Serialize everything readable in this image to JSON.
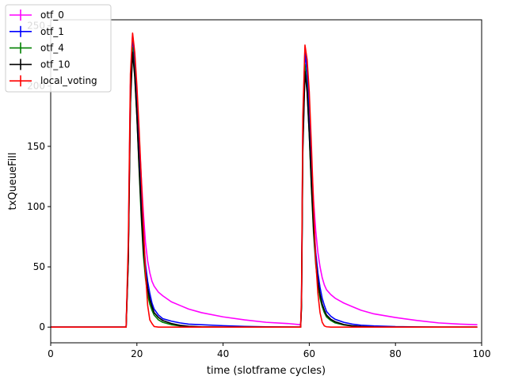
{
  "chart_data": {
    "type": "line",
    "xlabel": "time (slotframe cycles)",
    "ylabel": "txQueueFill",
    "xlim": [
      0,
      100
    ],
    "ylim": [
      -13,
      255
    ],
    "xticks": [
      0,
      20,
      40,
      60,
      80,
      100
    ],
    "yticks": [
      0,
      50,
      100,
      150,
      200,
      250
    ],
    "grid": false,
    "legend_position": "top-left",
    "series": [
      {
        "name": "otf_0",
        "color": "#ff00ff",
        "x": [
          0,
          5,
          10,
          15,
          17.5,
          18,
          18.5,
          19,
          19.5,
          20,
          20.5,
          21,
          21.5,
          22,
          22.5,
          23,
          23.5,
          24,
          25,
          26,
          28,
          30,
          32,
          35,
          40,
          45,
          50,
          55,
          58,
          58.2,
          58.5,
          59,
          59.5,
          60,
          60.5,
          61,
          61.5,
          62,
          62.5,
          63,
          63.5,
          64,
          65,
          66,
          68,
          70,
          72,
          75,
          80,
          85,
          90,
          95,
          99
        ],
        "y": [
          0,
          0,
          0,
          0,
          0,
          60,
          200,
          243,
          225,
          195,
          160,
          125,
          95,
          70,
          55,
          45,
          38,
          34,
          29,
          26,
          21,
          18,
          15,
          12,
          8.5,
          6,
          4,
          3,
          2,
          20,
          165,
          232,
          215,
          180,
          140,
          105,
          80,
          62,
          50,
          41,
          35,
          31,
          27,
          24,
          20,
          17,
          14,
          11,
          8,
          5.5,
          3.5,
          2.5,
          2
        ]
      },
      {
        "name": "otf_1",
        "color": "#0000ff",
        "x": [
          0,
          5,
          10,
          15,
          17.5,
          18,
          18.5,
          19,
          19.5,
          20,
          20.5,
          21,
          21.5,
          22,
          22.5,
          23,
          23.5,
          24,
          25,
          26,
          28,
          30,
          32,
          35,
          40,
          45,
          50,
          55,
          58,
          58.2,
          58.5,
          59,
          59.5,
          60,
          60.5,
          61,
          61.5,
          62,
          62.5,
          63,
          63.5,
          64,
          65,
          66,
          68,
          70,
          72,
          75,
          80,
          85,
          90,
          95,
          99
        ],
        "y": [
          0,
          0,
          0,
          0,
          0,
          60,
          200,
          242,
          220,
          185,
          145,
          105,
          75,
          52,
          38,
          28,
          20,
          15,
          10,
          7,
          5,
          3.5,
          2.5,
          2,
          1.2,
          0.6,
          0.3,
          0.1,
          0,
          20,
          160,
          230,
          210,
          170,
          125,
          90,
          62,
          45,
          33,
          24,
          18,
          13,
          9,
          6.5,
          4,
          2.5,
          1.6,
          1,
          0.4,
          0.2,
          0,
          0,
          0
        ]
      },
      {
        "name": "otf_4",
        "color": "#008000",
        "x": [
          0,
          5,
          10,
          15,
          17.5,
          18,
          18.5,
          19,
          19.5,
          20,
          20.5,
          21,
          21.5,
          22,
          22.5,
          23,
          23.5,
          24,
          25,
          26,
          28,
          30,
          32,
          35,
          40,
          45,
          50,
          55,
          58,
          58.2,
          58.5,
          59,
          59.5,
          60,
          60.5,
          61,
          61.5,
          62,
          62.5,
          63,
          63.5,
          64,
          65,
          66,
          68,
          70,
          72,
          75,
          80,
          85,
          90,
          95,
          99
        ],
        "y": [
          0,
          0,
          0,
          0,
          0,
          55,
          190,
          232,
          210,
          175,
          132,
          92,
          60,
          40,
          27,
          19,
          14,
          10,
          6,
          4,
          2,
          1,
          0.5,
          0.2,
          0,
          0,
          0,
          0,
          0,
          18,
          150,
          218,
          198,
          160,
          115,
          78,
          52,
          35,
          24,
          17,
          12,
          8.5,
          5.5,
          3.5,
          1.8,
          0.9,
          0.4,
          0.1,
          0,
          0,
          0,
          0,
          0
        ]
      },
      {
        "name": "otf_10",
        "color": "#000000",
        "x": [
          0,
          5,
          10,
          15,
          17.5,
          18,
          18.5,
          19,
          19.5,
          20,
          20.5,
          21,
          21.5,
          22,
          22.5,
          23,
          23.5,
          24,
          25,
          26,
          28,
          30,
          32,
          35,
          40,
          45,
          50,
          55,
          58,
          58.2,
          58.5,
          59,
          59.5,
          60,
          60.5,
          61,
          61.5,
          62,
          62.5,
          63,
          63.5,
          64,
          65,
          66,
          68,
          70,
          72,
          75,
          80,
          85,
          90,
          95,
          99
        ],
        "y": [
          0,
          0,
          0,
          0,
          0,
          55,
          185,
          228,
          208,
          175,
          135,
          97,
          66,
          46,
          32,
          23,
          17,
          12,
          8,
          5.5,
          3,
          1.5,
          0.7,
          0.2,
          0,
          0,
          0,
          0,
          0,
          18,
          145,
          212,
          195,
          160,
          118,
          82,
          56,
          38,
          27,
          19,
          14,
          10,
          6.5,
          4.5,
          2.2,
          1.1,
          0.5,
          0.1,
          0,
          0,
          0,
          0,
          0
        ]
      },
      {
        "name": "local_voting",
        "color": "#ff0000",
        "x": [
          0,
          5,
          10,
          15,
          17.5,
          18,
          18.5,
          19,
          19.5,
          20,
          20.5,
          21,
          21.5,
          22,
          22.5,
          23,
          23.5,
          24,
          25,
          26,
          28,
          30,
          35,
          40,
          45,
          50,
          55,
          58,
          58.2,
          58.5,
          59,
          59.5,
          60,
          60.5,
          61,
          61.5,
          62,
          62.5,
          63,
          63.5,
          64,
          65,
          66,
          70,
          75,
          80,
          85,
          90,
          95,
          99
        ],
        "y": [
          0,
          0,
          0,
          0,
          0,
          70,
          210,
          244,
          228,
          200,
          165,
          125,
          85,
          45,
          18,
          6,
          3,
          0.5,
          0,
          0,
          0,
          0,
          0,
          0,
          0,
          0,
          0,
          0,
          25,
          175,
          234,
          222,
          195,
          150,
          100,
          55,
          28,
          12,
          4,
          1,
          0.3,
          0,
          0,
          0,
          0,
          0,
          0,
          0,
          0,
          0
        ]
      }
    ]
  }
}
